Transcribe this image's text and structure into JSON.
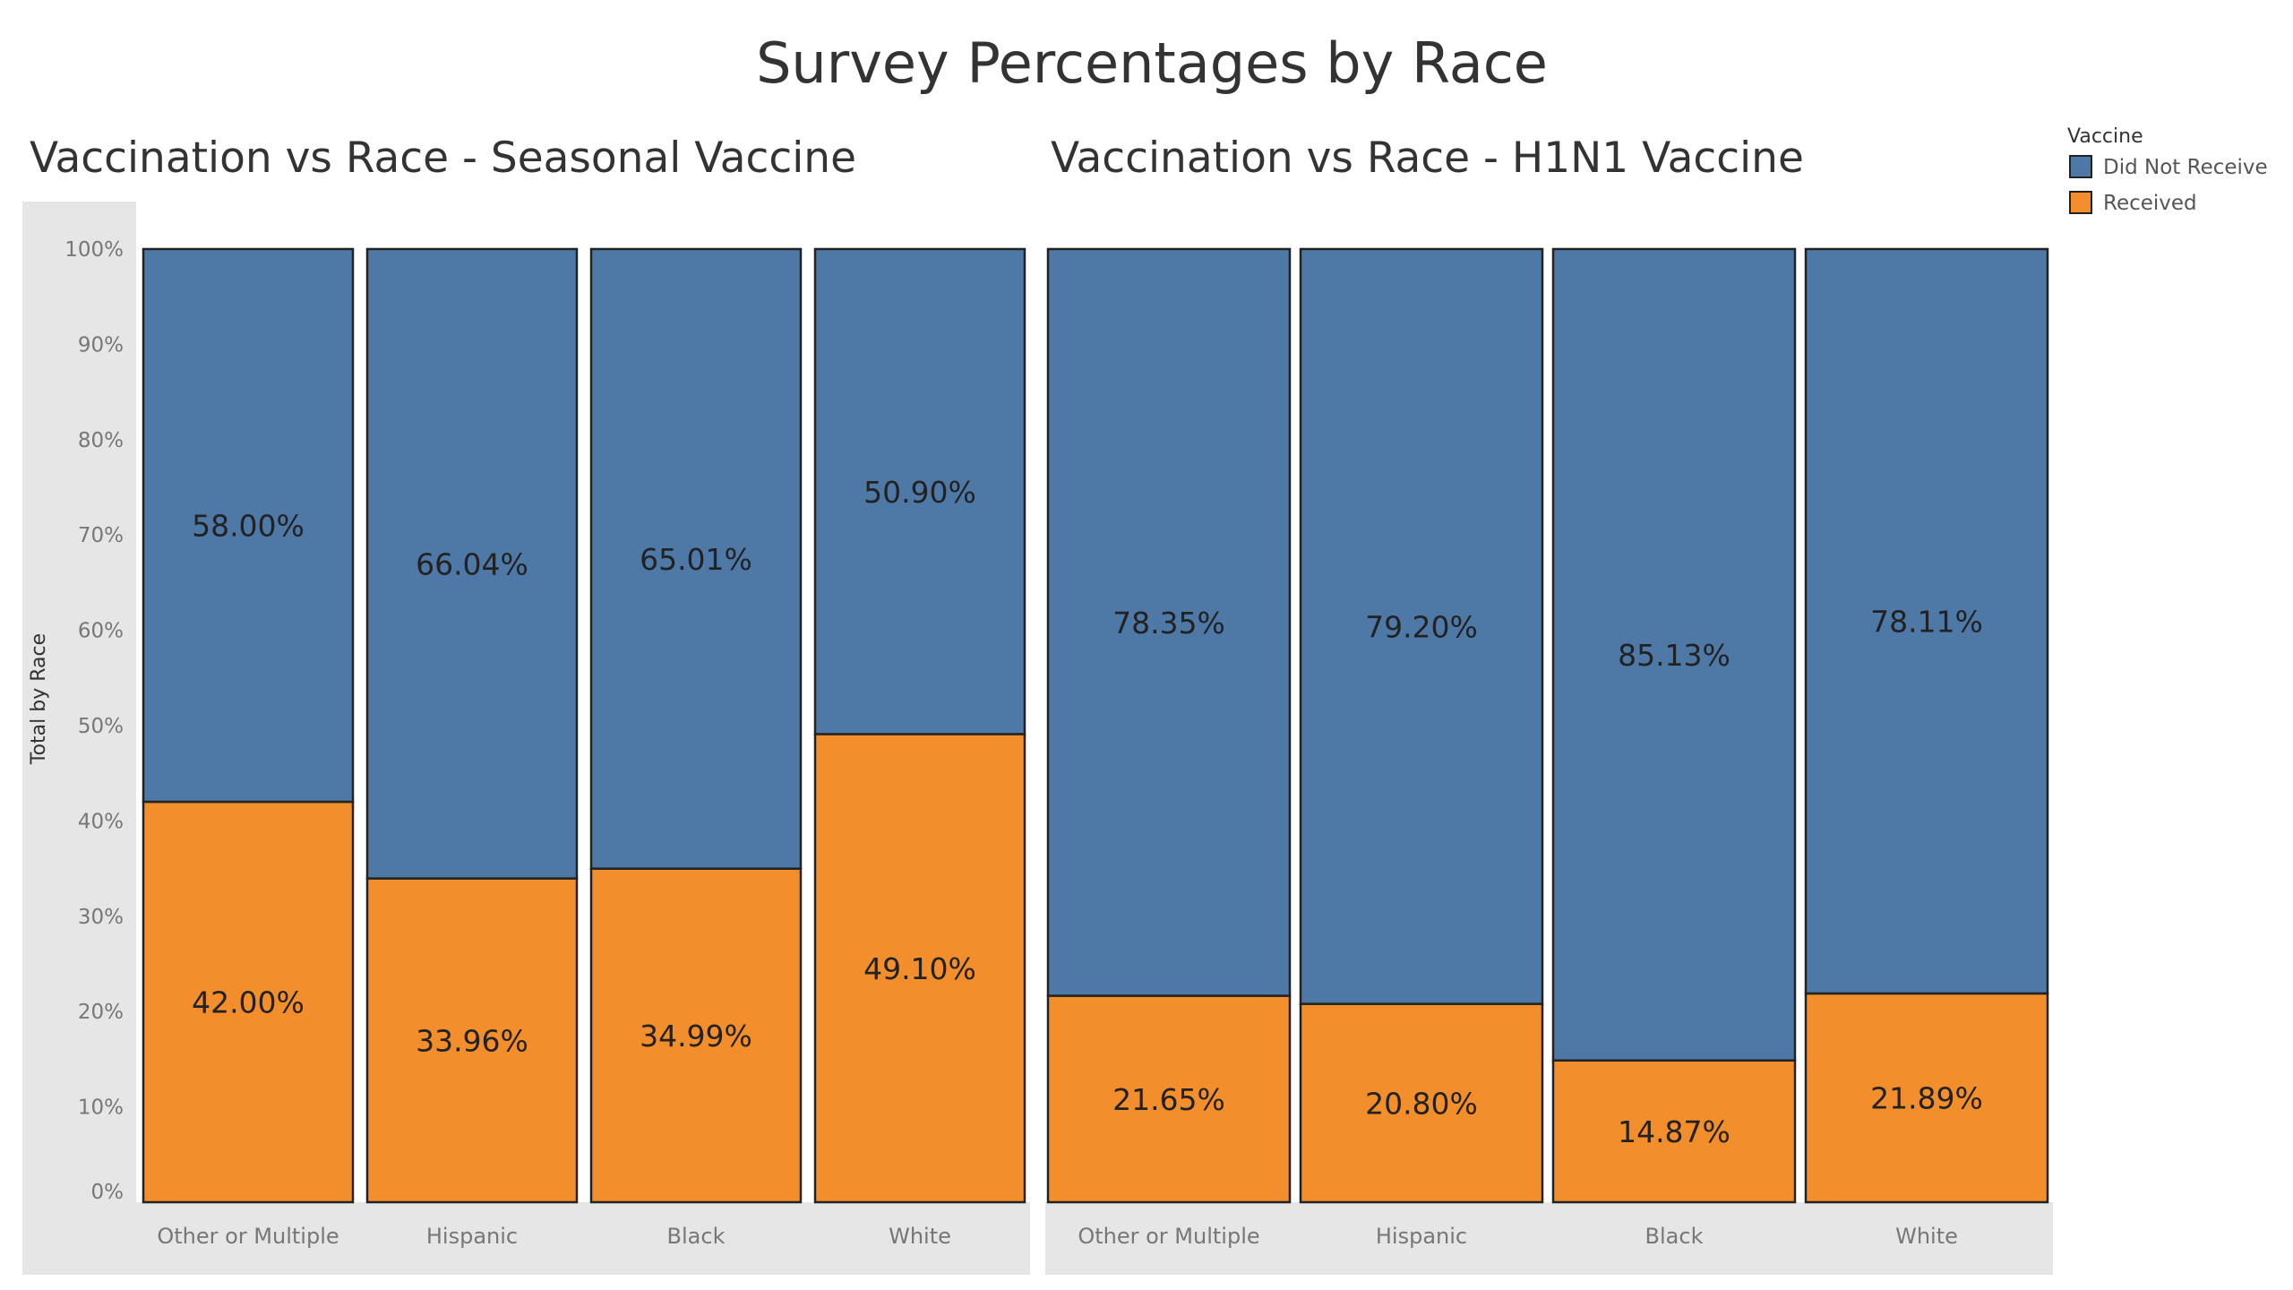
{
  "title": "Survey Percentages by Race",
  "legend": {
    "title": "Vaccine",
    "items": [
      {
        "label": "Did Not Receive",
        "color": "#4e79a7"
      },
      {
        "label": "Received",
        "color": "#f28e2b"
      }
    ]
  },
  "y_axis": {
    "title": "Total by Race",
    "ticks": [
      "0%",
      "10%",
      "20%",
      "30%",
      "40%",
      "50%",
      "60%",
      "70%",
      "80%",
      "90%",
      "100%"
    ]
  },
  "chart_data": [
    {
      "type": "bar",
      "stacked": true,
      "title": "Vaccination vs Race - Seasonal Vaccine",
      "ylabel": "Total by Race",
      "ylim": [
        0,
        100
      ],
      "categories": [
        "Other or Multiple",
        "Hispanic",
        "Black",
        "White"
      ],
      "series": [
        {
          "name": "Received",
          "values": [
            42.0,
            33.96,
            34.99,
            49.1
          ],
          "labels": [
            "42.00%",
            "33.96%",
            "34.99%",
            "49.10%"
          ]
        },
        {
          "name": "Did Not Receive",
          "values": [
            58.0,
            66.04,
            65.01,
            50.9
          ],
          "labels": [
            "58.00%",
            "66.04%",
            "65.01%",
            "50.90%"
          ]
        }
      ]
    },
    {
      "type": "bar",
      "stacked": true,
      "title": "Vaccination vs Race - H1N1 Vaccine",
      "ylim": [
        0,
        100
      ],
      "categories": [
        "Other or Multiple",
        "Hispanic",
        "Black",
        "White"
      ],
      "series": [
        {
          "name": "Received",
          "values": [
            21.65,
            20.8,
            14.87,
            21.89
          ],
          "labels": [
            "21.65%",
            "20.80%",
            "14.87%",
            "21.89%"
          ]
        },
        {
          "name": "Did Not Receive",
          "values": [
            78.35,
            79.2,
            85.13,
            78.11
          ],
          "labels": [
            "78.35%",
            "79.20%",
            "85.13%",
            "78.11%"
          ]
        }
      ]
    }
  ]
}
